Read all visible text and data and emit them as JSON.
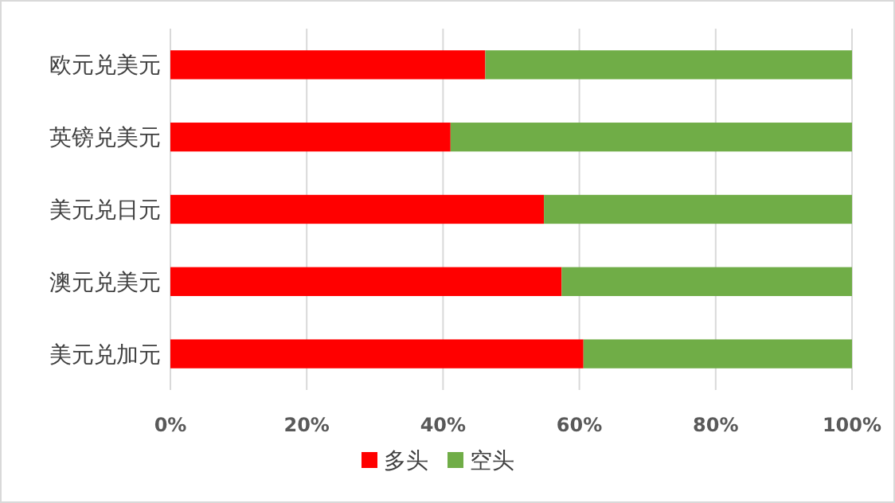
{
  "chart_data": {
    "type": "bar",
    "orientation": "horizontal",
    "stacked": true,
    "categories": [
      "欧元兑美元",
      "英镑兑美元",
      "美元兑日元",
      "澳元兑美元",
      "美元兑加元"
    ],
    "series": [
      {
        "name": "多头",
        "color": "#ff0000",
        "values": [
          46.2,
          41.1,
          54.8,
          57.4,
          60.6
        ]
      },
      {
        "name": "空头",
        "color": "#70ad47",
        "values": [
          53.8,
          58.9,
          45.2,
          42.6,
          39.4
        ]
      }
    ],
    "xlim": [
      0,
      100
    ],
    "xticks": [
      {
        "value": 0,
        "label": "0%"
      },
      {
        "value": 20,
        "label": "20%"
      },
      {
        "value": 40,
        "label": "40%"
      },
      {
        "value": 60,
        "label": "60%"
      },
      {
        "value": 80,
        "label": "80%"
      },
      {
        "value": 100,
        "label": "100%"
      }
    ],
    "grid": "x",
    "legend": "bottom"
  }
}
